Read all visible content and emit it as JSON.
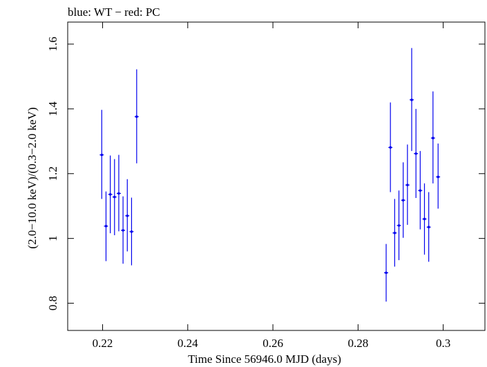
{
  "chart_data": {
    "type": "scatter",
    "title": "blue: WT − red: PC",
    "xlabel": "Time Since 56946.0 MJD (days)",
    "ylabel": "(2.0−10.0 keV)/(0.3−2.0 keV)",
    "xlim": [
      0.2118,
      0.3098
    ],
    "ylim": [
      0.716,
      1.668
    ],
    "x_ticks": [
      0.22,
      0.24,
      0.26,
      0.28,
      0.3
    ],
    "x_tick_labels": [
      "0.22",
      "0.24",
      "0.26",
      "0.28",
      "0.3"
    ],
    "y_ticks": [
      0.8,
      1.0,
      1.2,
      1.4,
      1.6
    ],
    "y_tick_labels": [
      "0.8",
      "1",
      "1.2",
      "1.4",
      "1.6"
    ],
    "grid": false,
    "series": [
      {
        "color": "#0000ee",
        "points": [
          {
            "x": 0.2198,
            "y": 1.258,
            "ylo": 1.122,
            "yhi": 1.397
          },
          {
            "x": 0.2208,
            "y": 1.038,
            "ylo": 0.93,
            "yhi": 1.145
          },
          {
            "x": 0.2218,
            "y": 1.136,
            "ylo": 1.016,
            "yhi": 1.256
          },
          {
            "x": 0.2228,
            "y": 1.128,
            "ylo": 1.01,
            "yhi": 1.245
          },
          {
            "x": 0.2238,
            "y": 1.139,
            "ylo": 1.022,
            "yhi": 1.258
          },
          {
            "x": 0.2248,
            "y": 1.025,
            "ylo": 0.922,
            "yhi": 1.13
          },
          {
            "x": 0.2258,
            "y": 1.07,
            "ylo": 0.96,
            "yhi": 1.183
          },
          {
            "x": 0.2268,
            "y": 1.021,
            "ylo": 0.917,
            "yhi": 1.126
          },
          {
            "x": 0.228,
            "y": 1.376,
            "ylo": 1.232,
            "yhi": 1.522
          },
          {
            "x": 0.2866,
            "y": 0.894,
            "ylo": 0.805,
            "yhi": 0.983
          },
          {
            "x": 0.2876,
            "y": 1.281,
            "ylo": 1.143,
            "yhi": 1.42
          },
          {
            "x": 0.2886,
            "y": 1.017,
            "ylo": 0.913,
            "yhi": 1.122
          },
          {
            "x": 0.2896,
            "y": 1.04,
            "ylo": 0.933,
            "yhi": 1.148
          },
          {
            "x": 0.2906,
            "y": 1.118,
            "ylo": 1.002,
            "yhi": 1.235
          },
          {
            "x": 0.2916,
            "y": 1.165,
            "ylo": 1.042,
            "yhi": 1.29
          },
          {
            "x": 0.2926,
            "y": 1.428,
            "ylo": 1.27,
            "yhi": 1.588
          },
          {
            "x": 0.2936,
            "y": 1.262,
            "ylo": 1.125,
            "yhi": 1.4
          },
          {
            "x": 0.2946,
            "y": 1.148,
            "ylo": 1.028,
            "yhi": 1.27
          },
          {
            "x": 0.2956,
            "y": 1.06,
            "ylo": 0.95,
            "yhi": 1.17
          },
          {
            "x": 0.2966,
            "y": 1.035,
            "ylo": 0.928,
            "yhi": 1.143
          },
          {
            "x": 0.2976,
            "y": 1.31,
            "ylo": 1.17,
            "yhi": 1.454
          },
          {
            "x": 0.2988,
            "y": 1.19,
            "ylo": 1.092,
            "yhi": 1.293
          }
        ]
      }
    ]
  }
}
